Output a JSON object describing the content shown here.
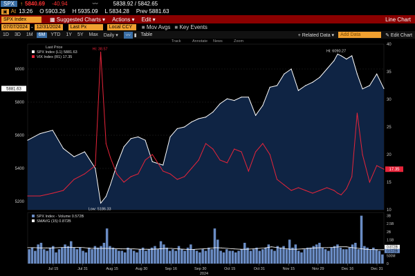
{
  "quote": {
    "ticker": "SPX",
    "arrow": "↑",
    "price": "5840.69",
    "change": "-40.94",
    "bid_ask": "5838.92 / 5842.65",
    "at": "At",
    "time": "13:26",
    "open": "O 5903.26",
    "high": "H 5935.09",
    "low": "L 5834.28",
    "prev": "Prev 5881.63"
  },
  "cmd_bar": {
    "security": "SPX Index",
    "suggested": "Suggested Charts",
    "actions": "Actions",
    "edit": "Edit",
    "chart_type": "Line Chart"
  },
  "options": {
    "start_date": "07/07/2024",
    "end_date": "12/31/2024",
    "last_px": "Last Px",
    "local_ccy": "Local CCY",
    "mov_avgs": "Mov Avgs",
    "key_events": "Key Events"
  },
  "periods": {
    "items": [
      "1D",
      "3D",
      "1M",
      "6M",
      "YTD",
      "1Y",
      "5Y",
      "Max",
      "Daily"
    ],
    "active": "6M",
    "table": "Table",
    "related": "Related Data",
    "add_data": "Add Data",
    "edit_chart": "Edit Chart"
  },
  "tools": [
    "Track",
    "Annotate",
    "News",
    "Zoom"
  ],
  "legend": {
    "heading": "Last Price",
    "spx_label": "SPX Index (L1) 5881.63",
    "vix_label": "VIX Index (R1) 17.35"
  },
  "annotations": {
    "low": "Low: 5186.33",
    "high": "Hi: 6090.27",
    "vix_high": "Hi: 38.57"
  },
  "volume_legend": {
    "vol_label": "SPX Index - Volume 0.572B",
    "smavg_label": "SMAVG (15) 0.872B"
  },
  "x_year": "2024",
  "colors": {
    "spx": "#ffffff",
    "vix": "#e8243a",
    "area": "#0f2444",
    "volume": "#6a8cc4",
    "smavg": "#ffffff",
    "accent": "#f0a030"
  },
  "chart_data": [
    {
      "type": "area",
      "series": [
        {
          "name": "SPX Index",
          "axis": "left",
          "x": [
            0,
            0.035,
            0.07,
            0.1,
            0.13,
            0.16,
            0.19,
            0.205,
            0.22,
            0.232,
            0.25,
            0.27,
            0.29,
            0.31,
            0.33,
            0.35,
            0.38,
            0.4,
            0.42,
            0.44,
            0.46,
            0.48,
            0.5,
            0.52,
            0.54,
            0.56,
            0.58,
            0.6,
            0.62,
            0.64,
            0.66,
            0.68,
            0.7,
            0.72,
            0.74,
            0.76,
            0.78,
            0.8,
            0.82,
            0.84,
            0.86,
            0.87,
            0.88,
            0.895,
            0.91,
            0.925,
            0.94,
            0.96,
            0.98,
            1.0
          ],
          "values": [
            5570,
            5610,
            5630,
            5520,
            5470,
            5500,
            5400,
            5190,
            5230,
            5300,
            5420,
            5530,
            5580,
            5590,
            5570,
            5440,
            5420,
            5590,
            5640,
            5650,
            5680,
            5700,
            5710,
            5740,
            5790,
            5820,
            5810,
            5830,
            5830,
            5720,
            5780,
            5890,
            5900,
            5970,
            6000,
            5870,
            5900,
            5920,
            5950,
            6000,
            6050,
            6090,
            6080,
            6060,
            6080,
            5970,
            5880,
            5900,
            5970,
            5881.63
          ]
        },
        {
          "name": "VIX Index",
          "axis": "right",
          "x": [
            0,
            0.035,
            0.07,
            0.1,
            0.13,
            0.16,
            0.19,
            0.205,
            0.22,
            0.232,
            0.25,
            0.27,
            0.29,
            0.31,
            0.33,
            0.35,
            0.38,
            0.4,
            0.42,
            0.44,
            0.46,
            0.48,
            0.5,
            0.52,
            0.54,
            0.56,
            0.58,
            0.6,
            0.62,
            0.64,
            0.66,
            0.68,
            0.7,
            0.72,
            0.74,
            0.76,
            0.78,
            0.8,
            0.82,
            0.84,
            0.86,
            0.87,
            0.88,
            0.895,
            0.91,
            0.925,
            0.94,
            0.96,
            0.98,
            1.0
          ],
          "values": [
            12.5,
            12.5,
            13.0,
            13.5,
            15.5,
            16.5,
            18.0,
            38.57,
            22.0,
            19.5,
            16.5,
            15.0,
            16.0,
            16.5,
            19.0,
            20.0,
            17.0,
            16.5,
            15.5,
            16.0,
            17.5,
            19.0,
            22.0,
            21.0,
            19.0,
            18.5,
            21.0,
            20.5,
            17.0,
            20.5,
            22.0,
            20.0,
            15.5,
            14.5,
            13.5,
            14.0,
            13.5,
            13.0,
            13.5,
            14.0,
            13.5,
            13.0,
            12.7,
            13.8,
            16.0,
            27.5,
            20.0,
            15.0,
            18.0,
            17.35
          ]
        }
      ],
      "ylim_left": [
        5150,
        6150
      ],
      "yticks_left": [
        5200,
        5400,
        5600,
        5800,
        6000
      ],
      "ylim_right": [
        10,
        40
      ],
      "yticks_right": [
        10,
        15,
        20,
        25,
        30,
        35,
        40
      ],
      "last_left_label": "5881.63",
      "last_right_label": "17.35",
      "grid": true
    },
    {
      "type": "bar",
      "title": "SPX Index - Volume",
      "series": [
        {
          "name": "Volume",
          "values": [
            0.9,
            1.0,
            0.8,
            1.2,
            1.3,
            0.9,
            0.8,
            1.0,
            1.1,
            0.7,
            0.9,
            1.0,
            1.2,
            1.1,
            1.4,
            1.0,
            0.9,
            1.0,
            0.8,
            0.7,
            1.0,
            0.9,
            1.1,
            1.0,
            1.1,
            1.3,
            2.2,
            1.1,
            1.0,
            0.9,
            0.8,
            0.8,
            0.7,
            1.0,
            0.9,
            0.8,
            0.7,
            0.9,
            1.0,
            0.8,
            0.9,
            1.0,
            1.1,
            0.9,
            1.4,
            1.2,
            1.0,
            0.8,
            0.9,
            0.8,
            1.1,
            0.9,
            0.8,
            1.0,
            1.2,
            0.9,
            0.8,
            0.7,
            0.9,
            0.8,
            1.0,
            0.9,
            2.2,
            1.5,
            0.8,
            0.7,
            0.9,
            0.8,
            0.8,
            0.7,
            0.8,
            0.9,
            1.3,
            1.0,
            0.8,
            0.9,
            1.0,
            0.8,
            0.9,
            1.0,
            1.2,
            0.9,
            0.8,
            1.1,
            1.0,
            1.1,
            0.9,
            1.5,
            1.0,
            1.2,
            0.8,
            0.7,
            0.9,
            1.0,
            1.0,
            1.1,
            1.2,
            1.3,
            1.0,
            0.9,
            0.8,
            1.0,
            1.1,
            1.2,
            1.0,
            0.9,
            0.9,
            1.0,
            1.2,
            1.3,
            0.9,
            3.0,
            1.1,
            1.0,
            0.9,
            1.0,
            0.9,
            0.8,
            0.572
          ]
        },
        {
          "name": "SMAVG (15)",
          "values": [
            1.0,
            1.0,
            0.98,
            0.98,
            0.98,
            1.0,
            1.02,
            1.02,
            1.02,
            1.0,
            0.96,
            0.95,
            0.95,
            0.95,
            0.94,
            0.92,
            0.92,
            0.92,
            0.9,
            0.9,
            0.9,
            0.92,
            0.95,
            0.95,
            0.92,
            0.9,
            0.88,
            0.9,
            0.92,
            0.95,
            1.0,
            0.98,
            0.95,
            0.92,
            0.9,
            0.9,
            0.92,
            0.95,
            0.98,
            1.05,
            1.0,
            0.95,
            0.9,
            0.9,
            0.92,
            0.95,
            0.98,
            1.0,
            1.0,
            1.02,
            1.05,
            1.05,
            1.0,
            0.95,
            0.9,
            0.88,
            0.87,
            0.872
          ]
        }
      ],
      "ylim": [
        0,
        3.2
      ],
      "yticks": [
        0,
        0.5,
        1,
        1.5,
        2,
        2.5,
        3
      ],
      "ytick_labels": [
        "0",
        "500M",
        "1B",
        "1.5B",
        "2B",
        "2.5B",
        "3B"
      ],
      "last_labels": [
        "0.872B",
        "0.572B"
      ]
    }
  ],
  "x_ticks": [
    "Jul 15",
    "Jul 31",
    "Aug 15",
    "Aug 30",
    "Sep 16",
    "Sep 30",
    "Oct 15",
    "Oct 31",
    "Nov 15",
    "Nov 29",
    "Dec 16",
    "Dec 31"
  ]
}
